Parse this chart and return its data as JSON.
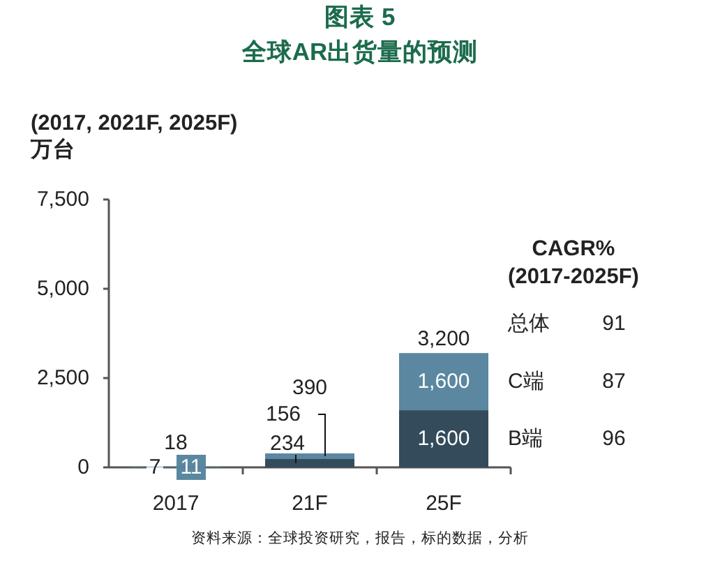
{
  "chart_data": {
    "type": "bar",
    "title": "图表 5",
    "subtitle": "全球AR出货量的预测",
    "ylabel": "(2017, 2021F, 2025F)\n万台",
    "categories": [
      "2017",
      "21F",
      "25F"
    ],
    "stacked": true,
    "series": [
      {
        "name": "B端",
        "color": "#344b5b",
        "values": [
          7,
          234,
          1600
        ],
        "value_labels": [
          "7",
          "234",
          "1,600"
        ]
      },
      {
        "name": "C端",
        "color": "#5b87a1",
        "values": [
          11,
          156,
          1600
        ],
        "value_labels": [
          "11",
          "156",
          "1,600"
        ]
      }
    ],
    "totals": [
      "18",
      "390",
      "3,200"
    ],
    "ylim": [
      0,
      7500
    ],
    "yticks": [
      0,
      {
        "value": 2500,
        "label": "2,500"
      },
      {
        "value": 5000,
        "label": "5,000"
      },
      {
        "value": 7500,
        "label": "7,500"
      }
    ],
    "legend": "right",
    "annotations": [
      "CAGR%\n(2017-2025F)",
      "总体",
      "91",
      "87",
      "96",
      "资料来源：全球投资研究，报告，标的数据，分析"
    ]
  }
}
